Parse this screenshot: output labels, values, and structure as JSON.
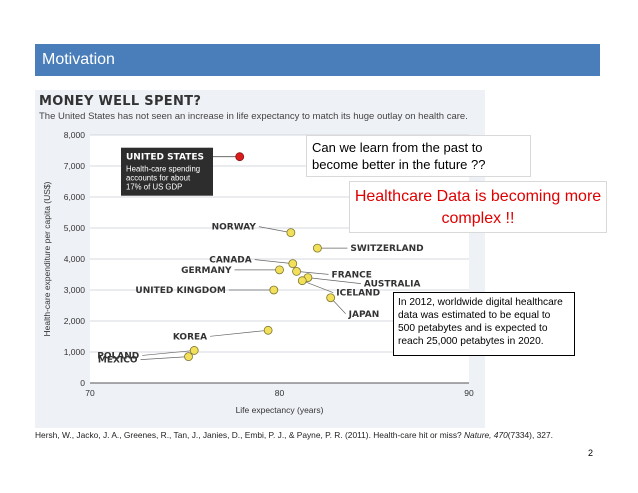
{
  "slide": {
    "title": "Motivation",
    "page_number": "2",
    "callout_question": "Can we learn from the past to become better in the future ??",
    "callout_highlight": "Healthcare Data is becoming more complex !!",
    "callout_note": "In 2012, worldwide digital healthcare data was estimated to be equal to 500 petabytes and is expected to reach 25,000 petabytes in 2020.",
    "citation_pre": "Hersh, W., Jacko, J. A., Greenes, R., Tan, J., Janies, D., Embi, P. J., & Payne, P. R. (2011). Health-care hit or miss? ",
    "citation_journal": "Nature, 470",
    "citation_post": "(7334), 327."
  },
  "colors": {
    "title_bar": "#4a7ebb",
    "point": "#f2e05a",
    "us_point": "#d91c1c",
    "highlight_text": "#e00000"
  },
  "chart_data": {
    "type": "scatter",
    "title": "MONEY WELL SPENT?",
    "subtitle": "The United States has not seen an increase in life expectancy to match its huge outlay on health care.",
    "xlabel": "Life expectancy (years)",
    "ylabel": "Health-care expenditure per capita (US$)",
    "xlim": [
      70,
      90
    ],
    "ylim": [
      0,
      8000
    ],
    "xticks": [
      70,
      80,
      90
    ],
    "yticks": [
      0,
      1000,
      2000,
      3000,
      4000,
      5000,
      6000,
      7000,
      8000
    ],
    "ytick_labels": [
      "0",
      "1,000",
      "2,000",
      "3,000",
      "4,000",
      "5,000",
      "6,000",
      "7,000",
      "8,000"
    ],
    "grid": true,
    "us_annotation": {
      "title": "UNITED STATES",
      "text": "Health-care spending accounts for about 17% of US GDP"
    },
    "points": [
      {
        "country": "UNITED STATES",
        "x": 77.9,
        "y": 7300,
        "highlight": true
      },
      {
        "country": "NORWAY",
        "x": 80.6,
        "y": 4850
      },
      {
        "country": "SWITZERLAND",
        "x": 82.0,
        "y": 4350
      },
      {
        "country": "CANADA",
        "x": 80.7,
        "y": 3850
      },
      {
        "country": "GERMANY",
        "x": 80.0,
        "y": 3650
      },
      {
        "country": "FRANCE",
        "x": 80.9,
        "y": 3600
      },
      {
        "country": "AUSTRALIA",
        "x": 81.5,
        "y": 3400
      },
      {
        "country": "ICELAND",
        "x": 81.2,
        "y": 3300
      },
      {
        "country": "UNITED KINGDOM",
        "x": 79.7,
        "y": 3000
      },
      {
        "country": "JAPAN",
        "x": 82.7,
        "y": 2750
      },
      {
        "country": "KOREA",
        "x": 79.4,
        "y": 1700
      },
      {
        "country": "POLAND",
        "x": 75.5,
        "y": 1050
      },
      {
        "country": "MEXICO",
        "x": 75.2,
        "y": 850
      }
    ],
    "labels": [
      {
        "text": "NORWAY",
        "side": "left",
        "x": 80.6,
        "y": 4850
      },
      {
        "text": "SWITZERLAND",
        "side": "right",
        "x": 82.0,
        "y": 4350
      },
      {
        "text": "CANADA",
        "side": "left",
        "x": 80.7,
        "y": 3850
      },
      {
        "text": "GERMANY",
        "side": "left",
        "x": 80.0,
        "y": 3650
      },
      {
        "text": "FRANCE",
        "side": "right",
        "x": 80.9,
        "y": 3600
      },
      {
        "text": "AUSTRALIA",
        "side": "right",
        "x": 81.5,
        "y": 3400
      },
      {
        "text": "ICELAND",
        "side": "right",
        "x": 81.2,
        "y": 3300
      },
      {
        "text": "UNITED KINGDOM",
        "side": "left",
        "x": 79.7,
        "y": 3000
      },
      {
        "text": "JAPAN",
        "side": "right",
        "x": 82.7,
        "y": 2750
      },
      {
        "text": "KOREA",
        "side": "left",
        "x": 79.4,
        "y": 1700
      },
      {
        "text": "POLAND",
        "side": "left",
        "x": 75.5,
        "y": 1050
      },
      {
        "text": "MEXICO",
        "side": "left",
        "x": 75.2,
        "y": 850
      }
    ]
  }
}
